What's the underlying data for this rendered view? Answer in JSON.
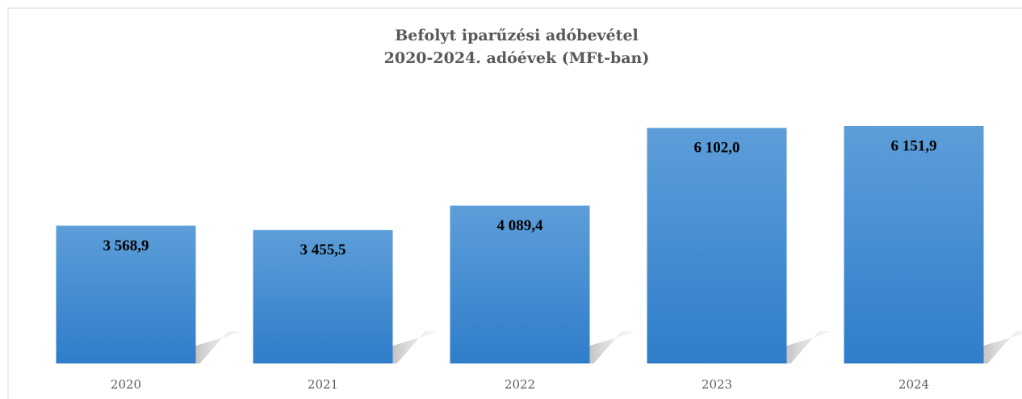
{
  "chart_data": {
    "type": "bar",
    "title": [
      "Befolyt iparűzési adóbevétel",
      "2020-2024. adóévek (MFt-ban)"
    ],
    "categories": [
      "2020",
      "2021",
      "2022",
      "2023",
      "2024"
    ],
    "values": [
      3568.9,
      3455.5,
      4089.4,
      6102.0,
      6151.9
    ],
    "value_labels": [
      "3 568,9",
      "3 455,5",
      "4 089,4",
      "6 102,0",
      "6 151,9"
    ],
    "color": "#4a90d6"
  }
}
